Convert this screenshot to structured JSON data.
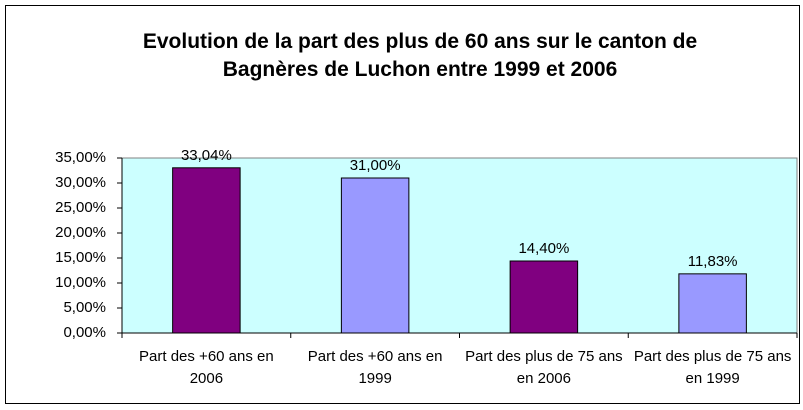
{
  "chart_data": {
    "type": "bar",
    "title": "Evolution de la part des plus de 60 ans sur le canton de Bagnères de Luchon entre 1999 et 2006",
    "categories": [
      "Part des +60 ans en 2006",
      "Part des +60 ans en 1999",
      "Part des plus de 75 ans en 2006",
      "Part des plus de 75 ans en 1999"
    ],
    "values": [
      33.04,
      31.0,
      14.4,
      11.83
    ],
    "value_labels": [
      "33,04%",
      "31,00%",
      "14,40%",
      "11,83%"
    ],
    "colors": [
      "#800080",
      "#9999ff",
      "#800080",
      "#9999ff"
    ],
    "ylim": [
      0,
      35
    ],
    "yticks": [
      {
        "value": 0,
        "label": "0,00%"
      },
      {
        "value": 5,
        "label": "5,00%"
      },
      {
        "value": 10,
        "label": "10,00%"
      },
      {
        "value": 15,
        "label": "15,00%"
      },
      {
        "value": 20,
        "label": "20,00%"
      },
      {
        "value": 25,
        "label": "25,00%"
      },
      {
        "value": 30,
        "label": "30,00%"
      },
      {
        "value": 35,
        "label": "35,00%"
      }
    ],
    "background": "#ccffff"
  }
}
